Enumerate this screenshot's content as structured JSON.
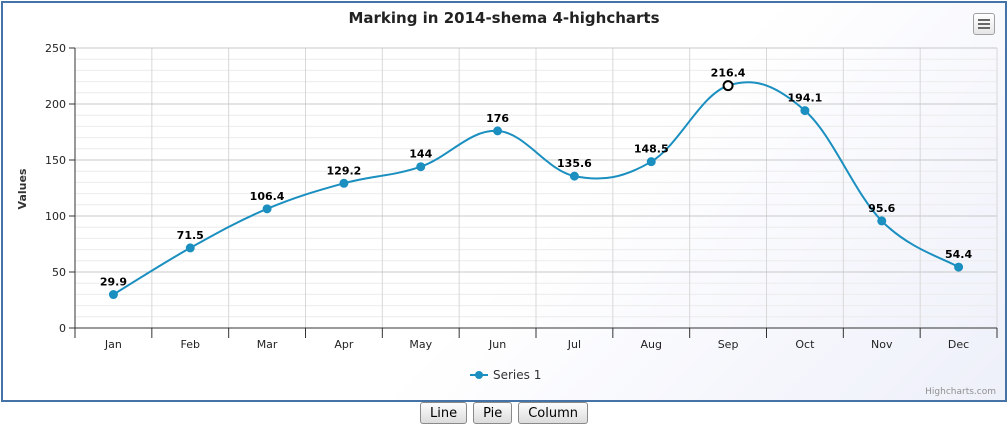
{
  "chart_data": {
    "type": "line",
    "title": "Marking in 2014-shema 4-highcharts",
    "ylabel": "Values",
    "xlabel": "",
    "categories": [
      "Jan",
      "Feb",
      "Mar",
      "Apr",
      "May",
      "Jun",
      "Jul",
      "Aug",
      "Sep",
      "Oct",
      "Nov",
      "Dec"
    ],
    "series": [
      {
        "name": "Series 1",
        "values": [
          29.9,
          71.5,
          106.4,
          129.2,
          144,
          176,
          135.6,
          148.5,
          216.4,
          194.1,
          95.6,
          54.4
        ]
      }
    ],
    "ylim": [
      0,
      250
    ],
    "yticks": [
      0,
      50,
      100,
      150,
      200,
      250
    ],
    "grid": true,
    "smooth": true,
    "data_labels": true,
    "highlighted_point": "Sep",
    "legend_position": "bottom-center",
    "series_color": "#1a8fc0",
    "credits": "Highcharts.com"
  },
  "buttons": {
    "line_label": "Line",
    "pie_label": "Pie",
    "column_label": "Column"
  }
}
